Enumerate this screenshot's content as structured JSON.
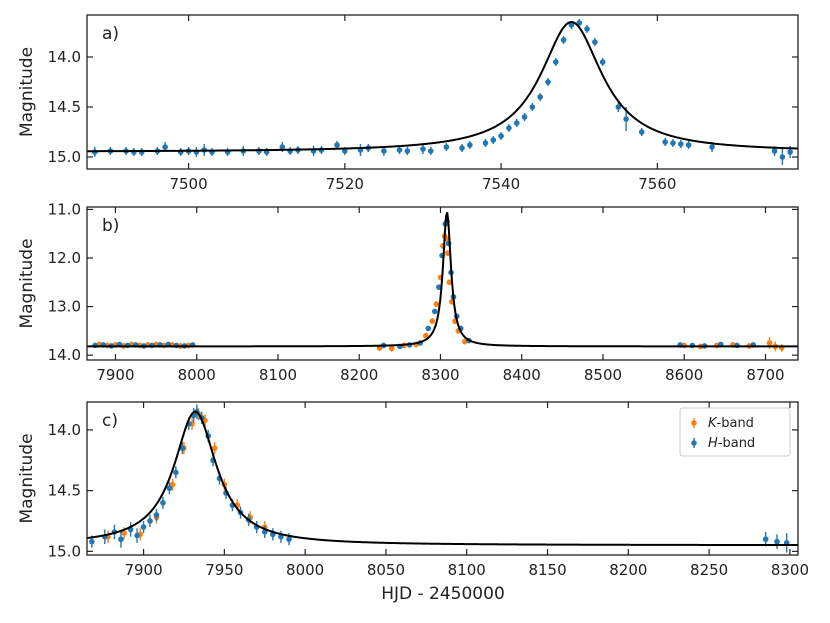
{
  "colors": {
    "h_band": "#1f77b4",
    "k_band": "#ff7f0e",
    "model": "#000000",
    "frame": "#222222"
  },
  "x_axis_label": "HJD - 2450000",
  "legend": {
    "k_band_label": "K",
    "k_band_suffix": "-band",
    "h_band_label": "H",
    "h_band_suffix": "-band",
    "placement": "top-right of panel c"
  },
  "chart_data": [
    {
      "panel": "a)",
      "type": "scatter",
      "ylabel": "Magnitude",
      "xlim": [
        7487,
        7578
      ],
      "ylim": [
        15.12,
        13.58
      ],
      "y_inverted": true,
      "xticks": [
        7500,
        7520,
        7540,
        7560
      ],
      "yticks": [
        14.0,
        14.5,
        15.0
      ],
      "ytick_labels": [
        "14.0",
        "14.5",
        "15.0"
      ],
      "model": {
        "base": 14.95,
        "peak": 13.65,
        "t0": 7549.0,
        "tau": 4.8,
        "shape": "lorentzian"
      },
      "series": [
        {
          "band": "H",
          "x": [
            7488,
            7490,
            7492,
            7493,
            7494,
            7496,
            7497,
            7499,
            7500,
            7501,
            7502,
            7503,
            7505,
            7507,
            7509,
            7510,
            7512,
            7513,
            7514,
            7516,
            7517,
            7519,
            7520,
            7522,
            7523,
            7525,
            7527,
            7528,
            7530,
            7531,
            7533,
            7535,
            7536,
            7538,
            7539,
            7540,
            7541,
            7542,
            7543,
            7544,
            7545,
            7546,
            7547,
            7548,
            7549,
            7550,
            7551,
            7552,
            7553,
            7555,
            7556,
            7558,
            7561,
            7562,
            7563,
            7564,
            7567,
            7575,
            7576,
            7577
          ],
          "y": [
            14.95,
            14.94,
            14.94,
            14.95,
            14.95,
            14.94,
            14.9,
            14.95,
            14.94,
            14.95,
            14.93,
            14.95,
            14.95,
            14.94,
            14.94,
            14.95,
            14.9,
            14.94,
            14.93,
            14.94,
            14.93,
            14.88,
            14.94,
            14.93,
            14.91,
            14.94,
            14.93,
            14.94,
            14.92,
            14.94,
            14.9,
            14.91,
            14.88,
            14.86,
            14.83,
            14.79,
            14.71,
            14.66,
            14.6,
            14.5,
            14.4,
            14.25,
            14.05,
            13.83,
            13.68,
            13.66,
            13.72,
            13.85,
            14.05,
            14.5,
            14.62,
            14.75,
            14.85,
            14.86,
            14.87,
            14.88,
            14.9,
            14.94,
            15.0,
            14.95
          ],
          "yerr": [
            0.05,
            0.04,
            0.04,
            0.04,
            0.04,
            0.04,
            0.05,
            0.04,
            0.04,
            0.05,
            0.06,
            0.04,
            0.04,
            0.05,
            0.04,
            0.04,
            0.05,
            0.04,
            0.04,
            0.05,
            0.04,
            0.04,
            0.04,
            0.06,
            0.04,
            0.05,
            0.04,
            0.04,
            0.05,
            0.04,
            0.04,
            0.04,
            0.04,
            0.04,
            0.04,
            0.04,
            0.04,
            0.04,
            0.04,
            0.04,
            0.04,
            0.04,
            0.04,
            0.04,
            0.04,
            0.04,
            0.04,
            0.04,
            0.04,
            0.05,
            0.12,
            0.04,
            0.04,
            0.04,
            0.04,
            0.04,
            0.05,
            0.05,
            0.08,
            0.06
          ]
        }
      ]
    },
    {
      "panel": "b)",
      "type": "scatter",
      "ylabel": "Magnitude",
      "xlim": [
        7865,
        8740
      ],
      "ylim": [
        14.1,
        10.95
      ],
      "y_inverted": true,
      "xticks": [
        7900,
        8000,
        8100,
        8200,
        8300,
        8400,
        8500,
        8600,
        8700
      ],
      "yticks": [
        11.0,
        12.0,
        13.0,
        14.0
      ],
      "ytick_labels": [
        "11.0",
        "12.0",
        "13.0",
        "14.0"
      ],
      "model": {
        "base": 13.82,
        "peak": 11.05,
        "t0": 8308.0,
        "tau": 6.0,
        "shape": "lorentzian"
      },
      "series": [
        {
          "band": "K",
          "x": [
            7880,
            7890,
            7900,
            7910,
            7920,
            7930,
            7940,
            7950,
            7960,
            7970,
            7980,
            7990,
            8225,
            8240,
            8255,
            8270,
            8282,
            8290,
            8295,
            8300,
            8303,
            8305,
            8307,
            8309,
            8311,
            8314,
            8318,
            8322,
            8330,
            8600,
            8620,
            8640,
            8660,
            8680,
            8705,
            8712,
            8720
          ],
          "y": [
            13.78,
            13.8,
            13.79,
            13.81,
            13.78,
            13.8,
            13.79,
            13.78,
            13.8,
            13.79,
            13.81,
            13.8,
            13.85,
            13.86,
            13.8,
            13.78,
            13.6,
            13.3,
            12.95,
            12.4,
            11.75,
            11.55,
            11.6,
            11.9,
            12.5,
            12.9,
            13.3,
            13.5,
            13.72,
            13.8,
            13.82,
            13.8,
            13.79,
            13.81,
            13.75,
            13.82,
            13.85
          ],
          "yerr": [
            0.06,
            0.06,
            0.06,
            0.06,
            0.06,
            0.06,
            0.06,
            0.06,
            0.06,
            0.06,
            0.06,
            0.06,
            0.07,
            0.07,
            0.06,
            0.06,
            0.06,
            0.06,
            0.06,
            0.06,
            0.06,
            0.06,
            0.06,
            0.06,
            0.06,
            0.06,
            0.06,
            0.06,
            0.06,
            0.06,
            0.06,
            0.06,
            0.06,
            0.06,
            0.12,
            0.1,
            0.08
          ]
        },
        {
          "band": "H",
          "x": [
            7875,
            7885,
            7895,
            7905,
            7915,
            7925,
            7935,
            7945,
            7955,
            7965,
            7975,
            7985,
            7995,
            8230,
            8250,
            8262,
            8275,
            8285,
            8293,
            8298,
            8302,
            8306,
            8308,
            8310,
            8313,
            8316,
            8320,
            8325,
            8335,
            8595,
            8610,
            8625,
            8645,
            8665,
            8685
          ],
          "y": [
            13.8,
            13.79,
            13.81,
            13.78,
            13.8,
            13.79,
            13.81,
            13.8,
            13.79,
            13.78,
            13.8,
            13.81,
            13.79,
            13.8,
            13.82,
            13.79,
            13.75,
            13.45,
            13.1,
            12.6,
            11.95,
            11.3,
            11.25,
            11.7,
            12.3,
            12.8,
            13.2,
            13.45,
            13.7,
            13.79,
            13.8,
            13.81,
            13.78,
            13.8,
            13.79
          ],
          "yerr": [
            0.05,
            0.05,
            0.05,
            0.05,
            0.05,
            0.05,
            0.05,
            0.05,
            0.05,
            0.05,
            0.05,
            0.05,
            0.05,
            0.05,
            0.05,
            0.05,
            0.05,
            0.05,
            0.05,
            0.05,
            0.05,
            0.05,
            0.05,
            0.05,
            0.05,
            0.05,
            0.05,
            0.05,
            0.05,
            0.05,
            0.05,
            0.05,
            0.05,
            0.05,
            0.05
          ]
        }
      ]
    },
    {
      "panel": "c)",
      "type": "scatter",
      "ylabel": "Magnitude",
      "xlim": [
        7865,
        8305
      ],
      "ylim": [
        15.03,
        13.77
      ],
      "y_inverted": true,
      "xticks": [
        7900,
        7950,
        8000,
        8050,
        8100,
        8150,
        8200,
        8250,
        8300
      ],
      "yticks": [
        14.0,
        14.5,
        15.0
      ],
      "ytick_labels": [
        "14.0",
        "14.5",
        "15.0"
      ],
      "model": {
        "base": 14.95,
        "peak": 13.85,
        "t0": 7932.0,
        "tau": 16.0,
        "shape": "lorentzian"
      },
      "series": [
        {
          "band": "K",
          "x": [
            7878,
            7888,
            7898,
            7908,
            7918,
            7925,
            7930,
            7934,
            7938,
            7944,
            7950,
            7958,
            7966,
            7975
          ],
          "y": [
            14.88,
            14.85,
            14.86,
            14.72,
            14.45,
            14.15,
            13.95,
            13.87,
            13.92,
            14.15,
            14.45,
            14.62,
            14.72,
            14.8
          ],
          "yerr": [
            0.05,
            0.05,
            0.05,
            0.05,
            0.05,
            0.05,
            0.05,
            0.05,
            0.05,
            0.05,
            0.05,
            0.05,
            0.05,
            0.05
          ]
        },
        {
          "band": "H",
          "x": [
            7868,
            7876,
            7882,
            7886,
            7892,
            7896,
            7900,
            7904,
            7908,
            7912,
            7916,
            7920,
            7924,
            7928,
            7931,
            7933,
            7936,
            7940,
            7943,
            7947,
            7951,
            7955,
            7960,
            7965,
            7970,
            7975,
            7980,
            7985,
            7990,
            8285,
            8292,
            8298
          ],
          "y": [
            14.92,
            14.88,
            14.84,
            14.9,
            14.82,
            14.87,
            14.8,
            14.75,
            14.7,
            14.6,
            14.48,
            14.35,
            14.15,
            13.95,
            13.88,
            13.85,
            13.9,
            14.05,
            14.25,
            14.4,
            14.52,
            14.62,
            14.68,
            14.74,
            14.8,
            14.84,
            14.86,
            14.88,
            14.9,
            14.9,
            14.92,
            14.93
          ],
          "yerr": [
            0.05,
            0.06,
            0.06,
            0.07,
            0.06,
            0.06,
            0.05,
            0.05,
            0.05,
            0.05,
            0.05,
            0.05,
            0.05,
            0.05,
            0.06,
            0.06,
            0.05,
            0.05,
            0.05,
            0.05,
            0.05,
            0.05,
            0.05,
            0.05,
            0.05,
            0.05,
            0.05,
            0.05,
            0.05,
            0.06,
            0.06,
            0.08
          ]
        }
      ]
    }
  ]
}
